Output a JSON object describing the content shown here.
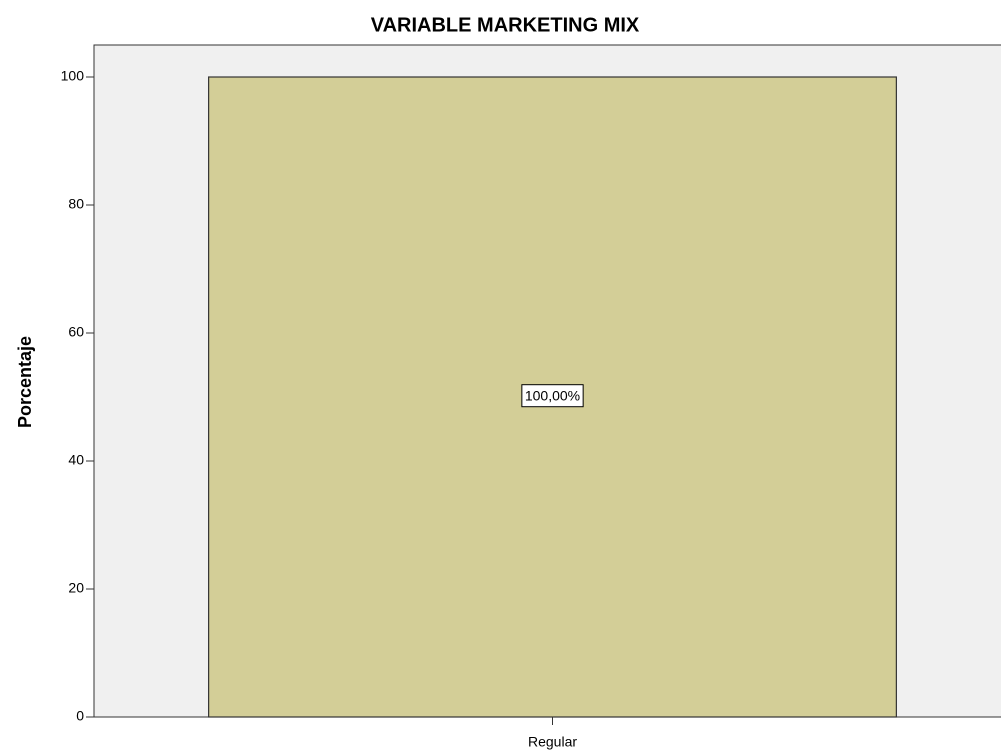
{
  "chart_data": {
    "type": "bar",
    "title": "VARIABLE MARKETING MIX",
    "y_label": "Porcentaje",
    "categories": [
      "Regular"
    ],
    "values": [
      100
    ],
    "value_labels": [
      "100,00%"
    ],
    "color": "#d3ce97",
    "ylim": [
      0,
      105
    ],
    "yticks": [
      0,
      20,
      40,
      60,
      80,
      100
    ],
    "grid": false
  }
}
